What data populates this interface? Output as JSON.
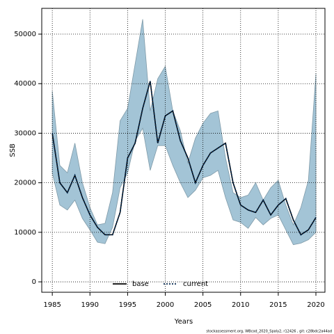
{
  "chart_data": {
    "type": "line",
    "x_label": "Years",
    "y_label": "SSB",
    "x": [
      1985,
      1986,
      1987,
      1988,
      1989,
      1990,
      1991,
      1992,
      1993,
      1994,
      1995,
      1996,
      1997,
      1998,
      1999,
      2000,
      2001,
      2002,
      2003,
      2004,
      2005,
      2006,
      2007,
      2008,
      2009,
      2010,
      2011,
      2012,
      2013,
      2014,
      2015,
      2016,
      2017,
      2018,
      2019,
      2020
    ],
    "series": [
      {
        "name": "base",
        "color": "#000000",
        "values": [
          30000,
          20000,
          18000,
          21500,
          17000,
          13500,
          11000,
          9500,
          9500,
          14000,
          25000,
          28000,
          35000,
          40500,
          28000,
          33500,
          34500,
          28500,
          25000,
          20000,
          23500,
          26000,
          27000,
          28000,
          20000,
          15500,
          14500,
          14000,
          16500,
          13500,
          15500,
          16800,
          12500,
          9500,
          10500,
          13000
        ]
      },
      {
        "name": "current",
        "color": "#00264d",
        "values": [
          30000,
          20000,
          18000,
          21500,
          17000,
          13500,
          11000,
          9500,
          9500,
          14000,
          25000,
          28000,
          35000,
          40500,
          28000,
          33500,
          34500,
          28500,
          25000,
          20000,
          23500,
          26000,
          27000,
          28000,
          20000,
          15500,
          14500,
          14000,
          16500,
          13500,
          15500,
          16800,
          12500,
          9500,
          10500,
          13000
        ]
      }
    ],
    "band": {
      "color": "#a3c4d6",
      "upper": [
        38500,
        23500,
        22000,
        28000,
        20000,
        15000,
        11500,
        11800,
        18000,
        32500,
        35000,
        44000,
        53000,
        34500,
        41000,
        43500,
        34500,
        30500,
        24000,
        29000,
        32000,
        34000,
        34500,
        25000,
        18000,
        17000,
        17500,
        20000,
        16500,
        19000,
        20500,
        15500,
        11500,
        15000,
        20500,
        42000
      ],
      "lower": [
        22000,
        15500,
        14500,
        16500,
        12800,
        10500,
        8000,
        7700,
        11000,
        19000,
        22000,
        28500,
        31000,
        22500,
        27500,
        27500,
        23500,
        20000,
        17000,
        18500,
        21000,
        21500,
        22500,
        17000,
        12500,
        12000,
        10800,
        13000,
        11500,
        12800,
        13500,
        10500,
        7500,
        7800,
        8500,
        10000
      ]
    },
    "xlim": [
      1983.6,
      2021.2
    ],
    "ylim": [
      -2100,
      55200
    ],
    "xticks": [
      1985,
      1990,
      1995,
      2000,
      2005,
      2010,
      2015,
      2020
    ],
    "yticks": [
      0,
      10000,
      20000,
      30000,
      40000,
      50000
    ],
    "grid": true,
    "legend": "bottom",
    "footnote": "stockassessment.org, WBcod_2020_Spaly2, r12426 , git: c28bdc2a44ad"
  }
}
